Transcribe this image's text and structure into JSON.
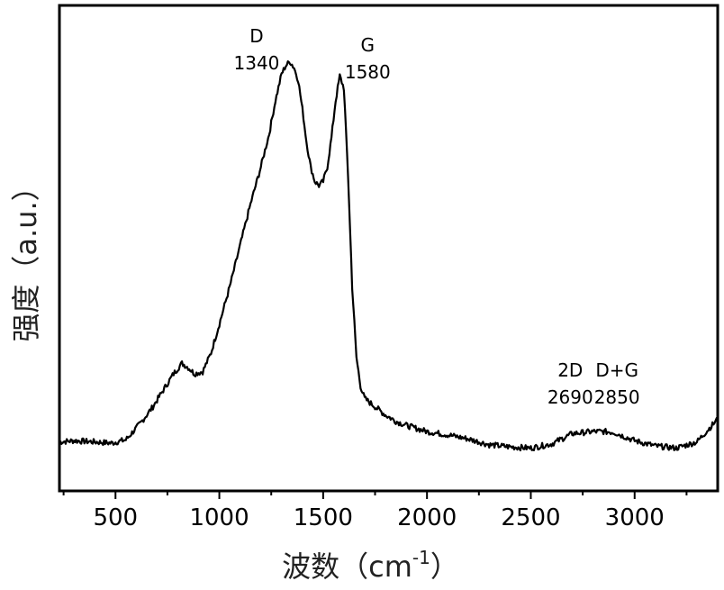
{
  "chart_data": {
    "type": "line",
    "title": "",
    "xlabel": "波数",
    "xlabel_unit": "（cm",
    "xlabel_unit_sup": "-1",
    "xlabel_unit_close": "）",
    "ylabel": "强度（a.u.）",
    "xlim": [
      230,
      3400
    ],
    "ylim": [
      0,
      1.0
    ],
    "y_ticks_shown": false,
    "grid": false,
    "x_ticks": [
      500,
      1000,
      1500,
      2000,
      2500,
      3000
    ],
    "x_tick_labels": [
      "500",
      "1000",
      "1500",
      "2000",
      "2500",
      "3000"
    ],
    "annotations": [
      {
        "label": "D",
        "value": "1340",
        "x": 1340
      },
      {
        "label": "G",
        "value": "1580",
        "x": 1580
      },
      {
        "label": "2D",
        "value": "2690",
        "x": 2690
      },
      {
        "label": "D+G",
        "value": "2850",
        "x": 2850
      }
    ],
    "series": [
      {
        "color": "#000000",
        "x": [
          230,
          300,
          400,
          480,
          550,
          620,
          680,
          730,
          780,
          820,
          850,
          880,
          920,
          960,
          1000,
          1050,
          1100,
          1150,
          1200,
          1240,
          1270,
          1300,
          1320,
          1340,
          1360,
          1380,
          1400,
          1420,
          1440,
          1460,
          1480,
          1500,
          1520,
          1540,
          1560,
          1580,
          1600,
          1620,
          1640,
          1660,
          1680,
          1700,
          1750,
          1800,
          1850,
          1900,
          2000,
          2100,
          2200,
          2300,
          2400,
          2500,
          2600,
          2700,
          2800,
          2850,
          2900,
          3000,
          3100,
          3200,
          3300,
          3400
        ],
        "y": [
          0.075,
          0.078,
          0.075,
          0.072,
          0.08,
          0.12,
          0.16,
          0.2,
          0.24,
          0.265,
          0.255,
          0.24,
          0.245,
          0.29,
          0.36,
          0.45,
          0.55,
          0.65,
          0.74,
          0.82,
          0.9,
          0.965,
          0.985,
          0.995,
          0.98,
          0.95,
          0.88,
          0.8,
          0.74,
          0.705,
          0.695,
          0.705,
          0.74,
          0.81,
          0.9,
          0.96,
          0.93,
          0.72,
          0.45,
          0.28,
          0.21,
          0.18,
          0.16,
          0.14,
          0.125,
          0.115,
          0.1,
          0.092,
          0.082,
          0.068,
          0.063,
          0.06,
          0.07,
          0.095,
          0.1,
          0.1,
          0.098,
          0.078,
          0.065,
          0.06,
          0.075,
          0.13
        ]
      }
    ]
  }
}
